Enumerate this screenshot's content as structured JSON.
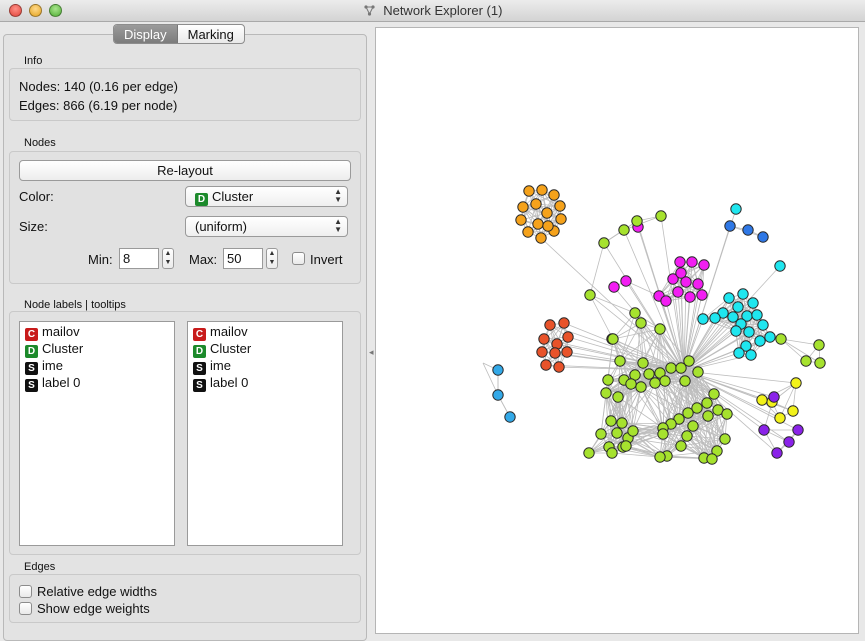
{
  "window": {
    "title": "Network Explorer (1)"
  },
  "tabs": [
    {
      "label": "Display",
      "active": true
    },
    {
      "label": "Marking",
      "active": false
    }
  ],
  "info": {
    "section_title": "Info",
    "nodes_line": "Nodes: 140 (0.16 per edge)",
    "edges_line": "Edges: 866 (6.19 per node)"
  },
  "nodes_section": {
    "section_title": "Nodes",
    "relayout_label": "Re-layout",
    "color_label": "Color:",
    "color_badge": "D",
    "color_value": "Cluster",
    "size_label": "Size:",
    "size_value": "(uniform)",
    "min_label": "Min:",
    "min_value": "8",
    "max_label": "Max:",
    "max_value": "50",
    "invert_label": "Invert"
  },
  "labels_section": {
    "section_title": "Node labels | tooltips",
    "labels_list": [
      {
        "badge": "C",
        "text": "mailov"
      },
      {
        "badge": "D",
        "text": "Cluster"
      },
      {
        "badge": "S",
        "text": "ime"
      },
      {
        "badge": "S",
        "text": "label 0"
      }
    ],
    "tooltips_list": [
      {
        "badge": "C",
        "text": "mailov"
      },
      {
        "badge": "D",
        "text": "Cluster"
      },
      {
        "badge": "S",
        "text": "ime"
      },
      {
        "badge": "S",
        "text": "label 0"
      }
    ]
  },
  "edges_section": {
    "section_title": "Edges",
    "relative_widths_label": "Relative edge widths",
    "show_weights_label": "Show edge weights"
  },
  "colors": {
    "orange": "#f5a21b",
    "lime": "#a6e22e",
    "magenta": "#f21ef2",
    "cyan": "#1fe6ef",
    "red": "#e8532a",
    "blue": "#2f78e6",
    "light_blue": "#33a9e8",
    "yellow": "#f2f21a",
    "purple": "#8a22e8",
    "edge": "#bdbdbd"
  },
  "graph": {
    "clusters": [
      {
        "name": "orange",
        "count": 14
      },
      {
        "name": "lime",
        "count": 62
      },
      {
        "name": "magenta",
        "count": 15
      },
      {
        "name": "cyan",
        "count": 21
      },
      {
        "name": "red",
        "count": 11
      },
      {
        "name": "blue",
        "count": 3
      },
      {
        "name": "light_blue",
        "count": 4
      },
      {
        "name": "yellow",
        "count": 5
      },
      {
        "name": "purple",
        "count": 5
      }
    ]
  }
}
